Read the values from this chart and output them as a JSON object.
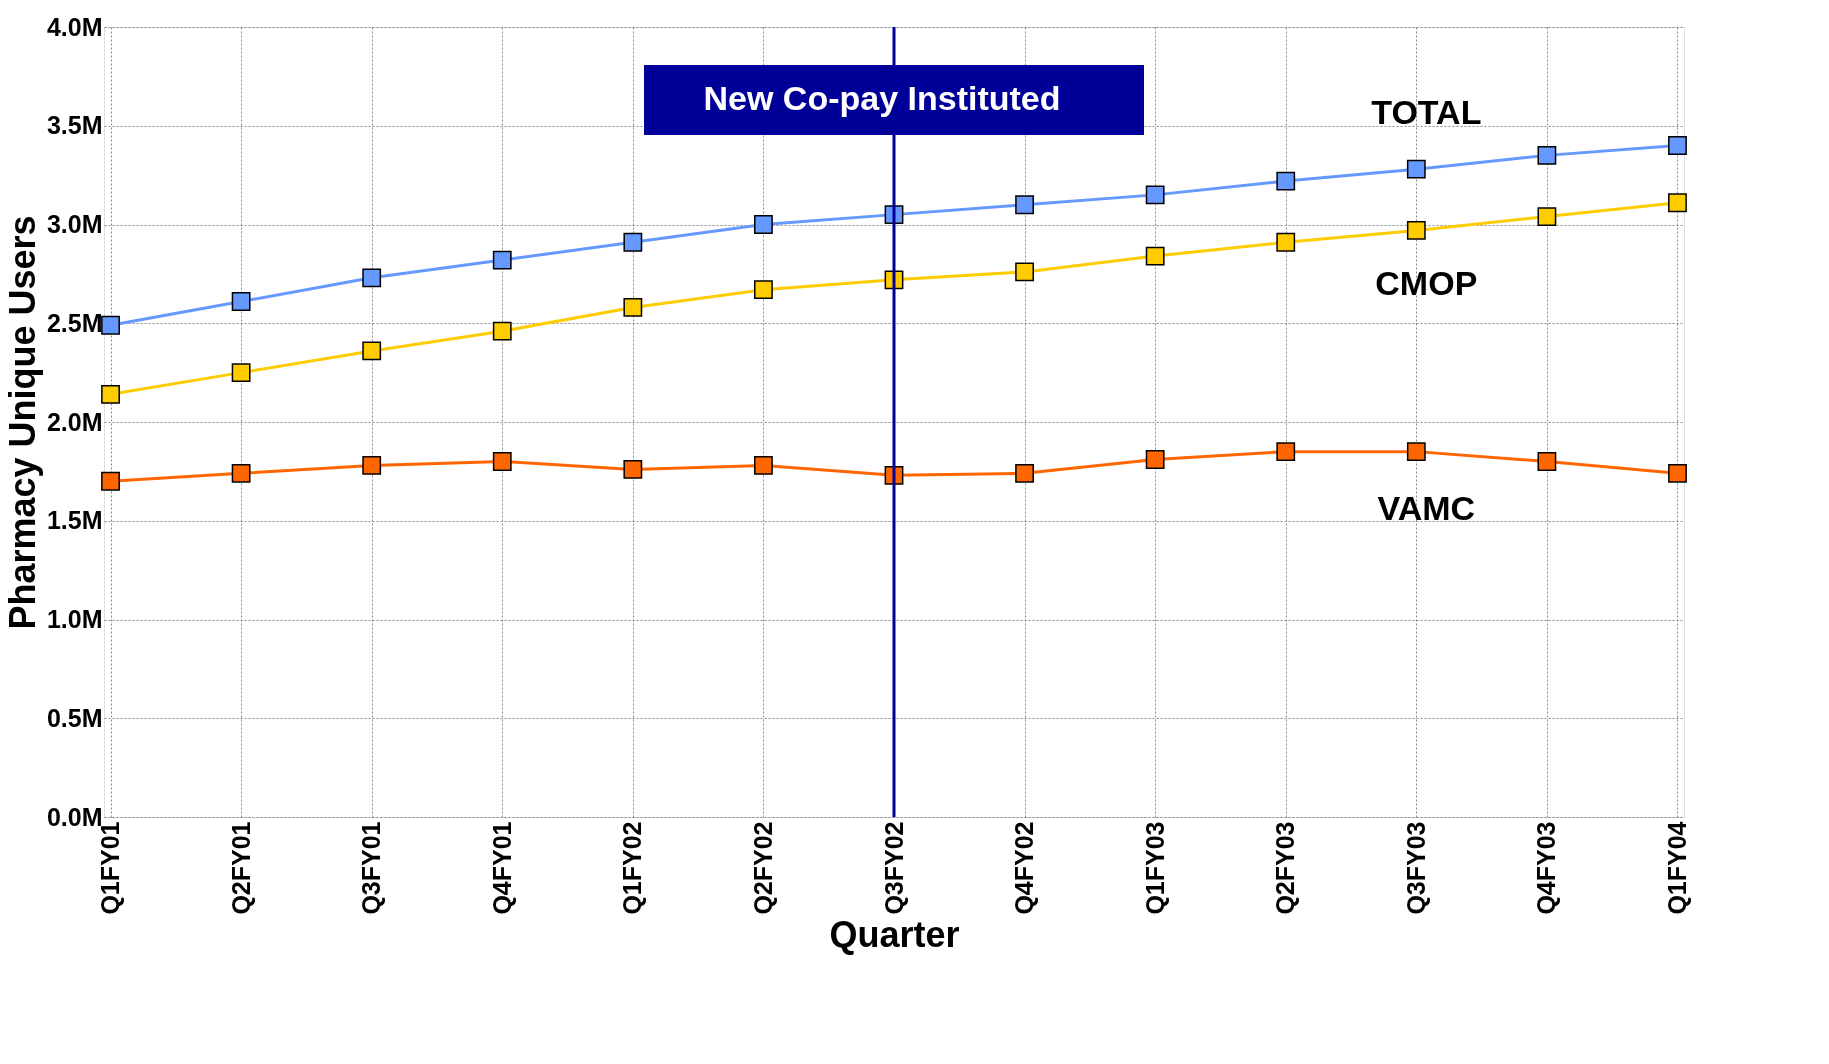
{
  "chart_data": {
    "type": "line",
    "xlabel": "Quarter",
    "ylabel": "Pharmacy Unique Users",
    "categories": [
      "Q1FY01",
      "Q2FY01",
      "Q3FY01",
      "Q4FY01",
      "Q1FY02",
      "Q2FY02",
      "Q3FY02",
      "Q4FY02",
      "Q1FY03",
      "Q2FY03",
      "Q3FY03",
      "Q4FY03",
      "Q1FY04"
    ],
    "series": [
      {
        "name": "TOTAL",
        "color": "#6699ff",
        "values": [
          2.49,
          2.61,
          2.73,
          2.82,
          2.91,
          3.0,
          3.05,
          3.1,
          3.15,
          3.22,
          3.28,
          3.35,
          3.4
        ]
      },
      {
        "name": "CMOP",
        "color": "#ffcc00",
        "values": [
          2.14,
          2.25,
          2.36,
          2.46,
          2.58,
          2.67,
          2.72,
          2.76,
          2.84,
          2.91,
          2.97,
          3.04,
          3.11
        ]
      },
      {
        "name": "VAMC",
        "color": "#ff6600",
        "values": [
          1.7,
          1.74,
          1.78,
          1.8,
          1.76,
          1.78,
          1.73,
          1.74,
          1.81,
          1.85,
          1.85,
          1.8,
          1.74
        ]
      }
    ],
    "ylim": [
      0,
      4
    ],
    "yticks": [
      {
        "value": 0,
        "label": "0.0M"
      },
      {
        "value": 0.5,
        "label": "0.5M"
      },
      {
        "value": 1,
        "label": "1.0M"
      },
      {
        "value": 1.5,
        "label": "1.5M"
      },
      {
        "value": 2,
        "label": "2.0M"
      },
      {
        "value": 2.5,
        "label": "2.5M"
      },
      {
        "value": 3,
        "label": "3.0M"
      },
      {
        "value": 3.5,
        "label": "3.5M"
      },
      {
        "value": 4,
        "label": "4.0M"
      }
    ],
    "ref_lines": [
      {
        "axis": "x",
        "value": "Q3FY02",
        "label": "New Co-pay Instituted",
        "color": "#000099"
      }
    ],
    "grid": true,
    "legend": false,
    "marker": "square",
    "line_style": "solid"
  }
}
